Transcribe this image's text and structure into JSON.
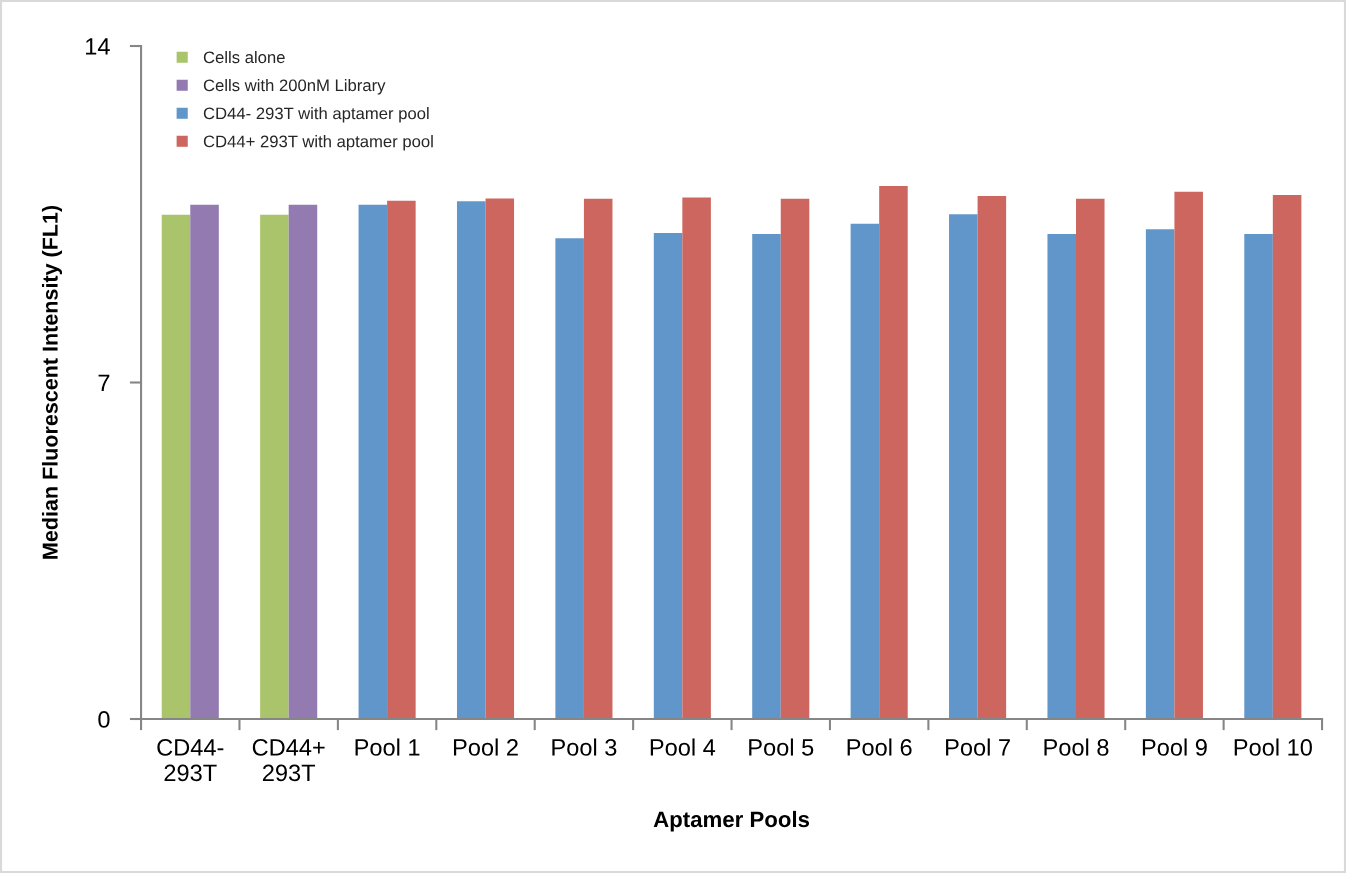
{
  "chart_data": {
    "type": "bar",
    "xlabel": "Aptamer Pools",
    "ylabel": "Median Fluorescent Intensity (FL1)",
    "categories": [
      "CD44- 293T",
      "CD44+ 293T",
      "Pool 1",
      "Pool 2",
      "Pool 3",
      "Pool 4",
      "Pool 5",
      "Pool 6",
      "Pool 7",
      "Pool 8",
      "Pool 9",
      "Pool 10"
    ],
    "series": [
      {
        "name": "Cells alone",
        "color": "#a9c46a",
        "values": [
          10.49,
          10.49,
          null,
          null,
          null,
          null,
          null,
          null,
          null,
          null,
          null,
          null
        ]
      },
      {
        "name": "Cells with 200nM Library",
        "color": "#937ab1",
        "values": [
          10.7,
          10.7,
          null,
          null,
          null,
          null,
          null,
          null,
          null,
          null,
          null,
          null
        ]
      },
      {
        "name": "CD44- 293T with aptamer pool",
        "color": "#6096c9",
        "values": [
          null,
          null,
          10.7,
          10.77,
          10.0,
          10.11,
          10.09,
          10.3,
          10.5,
          10.09,
          10.19,
          10.09
        ]
      },
      {
        "name": "CD44+ 293T with aptamer pool",
        "color": "#cd665e",
        "values": [
          null,
          null,
          10.78,
          10.83,
          10.82,
          10.85,
          10.82,
          11.09,
          10.88,
          10.82,
          10.97,
          10.9
        ]
      }
    ],
    "ylim": [
      0,
      14
    ],
    "yticks": [
      0,
      7,
      14
    ],
    "legend": "top left",
    "grid": false
  }
}
